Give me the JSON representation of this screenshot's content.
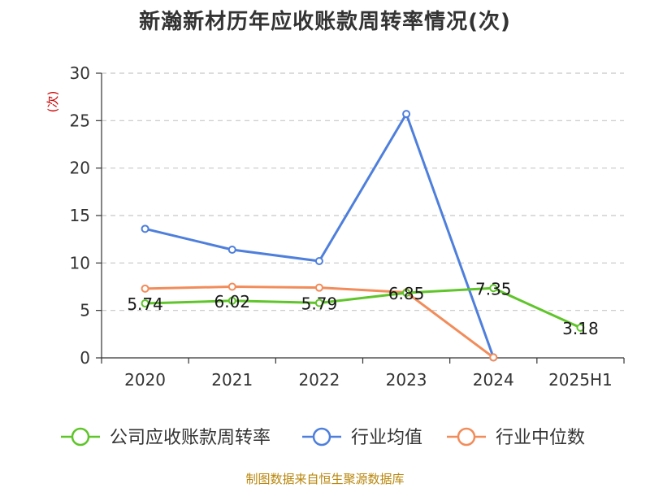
{
  "title": "新瀚新材历年应收账款周转率情况(次)",
  "source": "制图数据来自恒生聚源数据库",
  "chart_data": {
    "type": "line",
    "title": "新瀚新材历年应收账款周转率情况(次)",
    "ylabel": "(次)",
    "xlabel": "",
    "categories": [
      "2020",
      "2021",
      "2022",
      "2023",
      "2024",
      "2025H1"
    ],
    "ylim": [
      0,
      30
    ],
    "yticks": [
      "0",
      "5",
      "10",
      "15",
      "20",
      "25",
      "30"
    ],
    "grid": "horizontal-dashed",
    "legend_position": "bottom",
    "series": [
      {
        "name": "公司应收账款周转率",
        "color": "#5fc52a",
        "values": [
          5.74,
          6.02,
          5.79,
          6.85,
          7.35,
          3.18
        ],
        "labels": [
          "5.74",
          "6.02",
          "5.79",
          "6.85",
          "7.35",
          "3.18"
        ]
      },
      {
        "name": "行业均值",
        "color": "#4e7fdc",
        "values": [
          13.6,
          11.4,
          10.2,
          25.7,
          0.05,
          null
        ]
      },
      {
        "name": "行业中位数",
        "color": "#f28c5a",
        "values": [
          7.3,
          7.5,
          7.4,
          6.9,
          0.05,
          null
        ]
      }
    ]
  }
}
